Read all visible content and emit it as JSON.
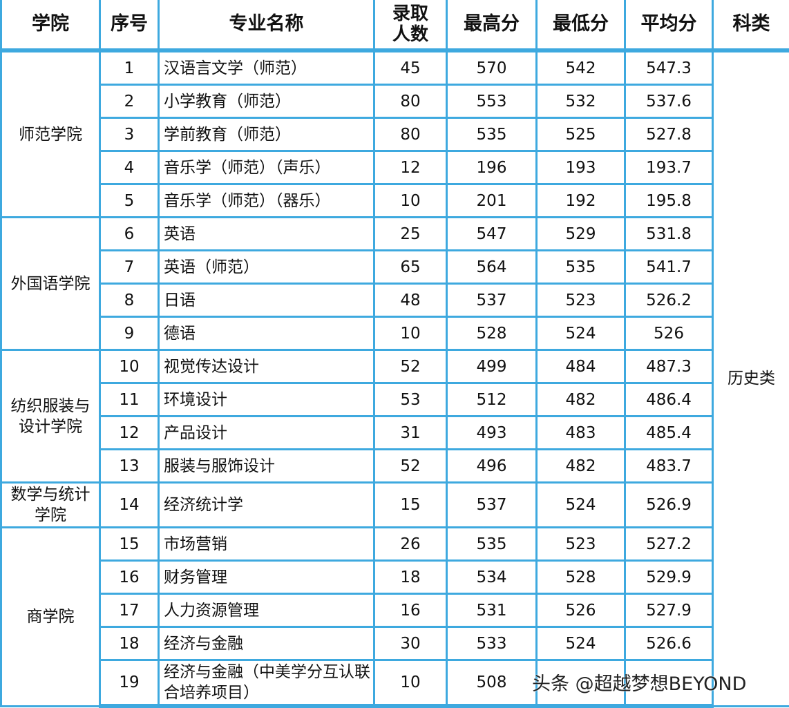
{
  "header": [
    "学院",
    "序号",
    "专业名称",
    "录取人数",
    "最高分",
    "最低分",
    "平均分",
    "科类"
  ],
  "subject_category": "历史类",
  "groups": [
    {
      "college": "师范学院",
      "rows": [
        {
          "no": "1",
          "major": "汉语言文学（师范）",
          "count": "45",
          "max": "570",
          "min": "542",
          "avg": "547.3"
        },
        {
          "no": "2",
          "major": "小学教育（师范）",
          "count": "80",
          "max": "553",
          "min": "532",
          "avg": "537.6"
        },
        {
          "no": "3",
          "major": "学前教育（师范）",
          "count": "80",
          "max": "535",
          "min": "525",
          "avg": "527.8"
        },
        {
          "no": "4",
          "major": "音乐学（师范）（声乐）",
          "count": "12",
          "max": "196",
          "min": "193",
          "avg": "193.7"
        },
        {
          "no": "5",
          "major": "音乐学（师范）（器乐）",
          "count": "10",
          "max": "201",
          "min": "192",
          "avg": "195.8"
        }
      ]
    },
    {
      "college": "外国语学院",
      "rows": [
        {
          "no": "6",
          "major": "英语",
          "count": "25",
          "max": "547",
          "min": "529",
          "avg": "531.8"
        },
        {
          "no": "7",
          "major": "英语（师范）",
          "count": "65",
          "max": "564",
          "min": "535",
          "avg": "541.7"
        },
        {
          "no": "8",
          "major": "日语",
          "count": "48",
          "max": "537",
          "min": "523",
          "avg": "526.2"
        },
        {
          "no": "9",
          "major": "德语",
          "count": "10",
          "max": "528",
          "min": "524",
          "avg": "526"
        }
      ]
    },
    {
      "college": "纺织服装与设计学院",
      "rows": [
        {
          "no": "10",
          "major": "视觉传达设计",
          "count": "52",
          "max": "499",
          "min": "484",
          "avg": "487.3"
        },
        {
          "no": "11",
          "major": "环境设计",
          "count": "53",
          "max": "512",
          "min": "482",
          "avg": "486.4"
        },
        {
          "no": "12",
          "major": "产品设计",
          "count": "31",
          "max": "493",
          "min": "483",
          "avg": "485.4"
        },
        {
          "no": "13",
          "major": "服装与服饰设计",
          "count": "52",
          "max": "496",
          "min": "482",
          "avg": "483.7"
        }
      ]
    },
    {
      "college": "数学与统计学院",
      "rows": [
        {
          "no": "14",
          "major": "经济统计学",
          "count": "15",
          "max": "537",
          "min": "524",
          "avg": "526.9"
        }
      ]
    },
    {
      "college": "商学院",
      "rows": [
        {
          "no": "15",
          "major": "市场营销",
          "count": "26",
          "max": "535",
          "min": "523",
          "avg": "527.2"
        },
        {
          "no": "16",
          "major": "财务管理",
          "count": "18",
          "max": "534",
          "min": "528",
          "avg": "529.9"
        },
        {
          "no": "17",
          "major": "人力资源管理",
          "count": "16",
          "max": "531",
          "min": "526",
          "avg": "527.9"
        },
        {
          "no": "18",
          "major": "经济与金融",
          "count": "30",
          "max": "533",
          "min": "524",
          "avg": "526.6"
        },
        {
          "no": "19",
          "major": "经济与金融（中美学分互认联合培养项目）",
          "count": "10",
          "max": "508",
          "min": "",
          "avg": ""
        }
      ]
    }
  ],
  "watermark": "头条 @超越梦想BEYOND"
}
